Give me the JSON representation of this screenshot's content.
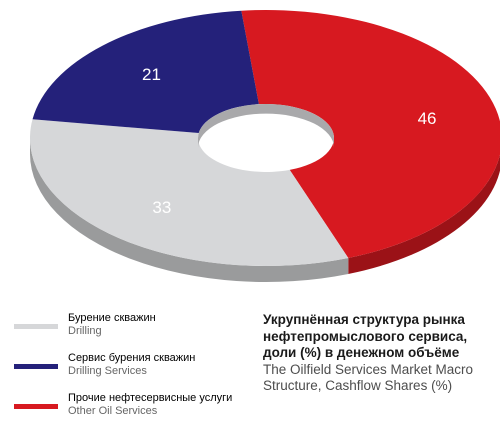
{
  "chart_data": {
    "type": "pie",
    "variant": "3d-donut",
    "categories": [
      {
        "ru": "Прочие нефтесервисные услуги",
        "en": "Other Oil Services"
      },
      {
        "ru": "Бурение скважин",
        "en": "Drilling"
      },
      {
        "ru": "Сервис бурения скважин",
        "en": "Drilling Services"
      }
    ],
    "values": [
      46,
      33,
      21
    ],
    "data_labels": [
      "46",
      "33",
      "21"
    ],
    "colors": [
      "#d71920",
      "#d6d7d9",
      "#24217a"
    ],
    "title_ru": "Укрупнённая структура рынка нефтепромыслового сервиса, доли (%) в денежном объёме",
    "title_en": "The Oilfield Services Market Macro Structure, Cashflow Shares (%)"
  },
  "legend": [
    {
      "ru": "Бурение скважин",
      "en": "Drilling",
      "color": "#d6d7d9"
    },
    {
      "ru": "Сервис бурения скважин",
      "en": "Drilling Services",
      "color": "#24217a"
    },
    {
      "ru": "Прочие нефтесервисные услуги",
      "en": "Other Oil Services",
      "color": "#d71920"
    }
  ]
}
